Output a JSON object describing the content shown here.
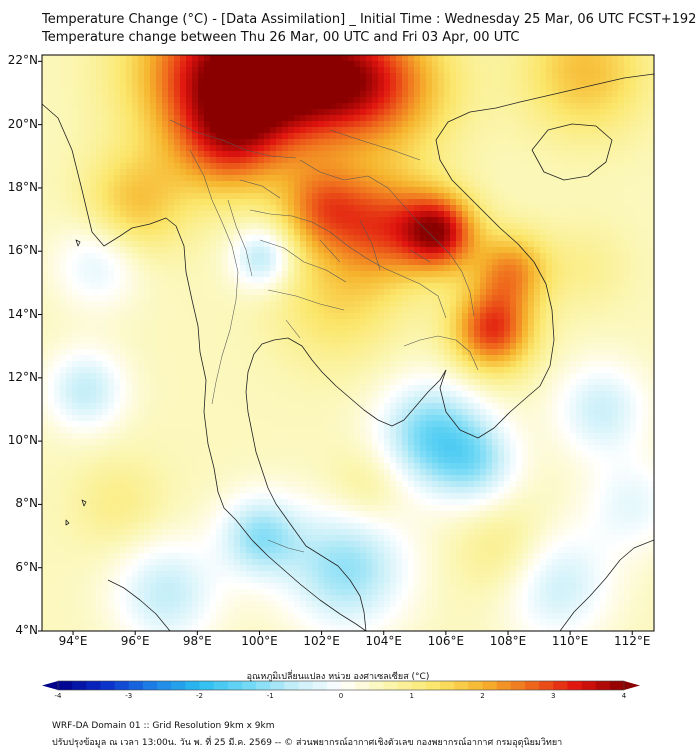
{
  "title": {
    "line1": "Temperature Change (°C) - [Data Assimilation] _ Initial Time : Wednesday 25 Mar, 06 UTC FCST+192",
    "line2": "Temperature change between Thu 26 Mar, 00 UTC and Fri 03 Apr, 00 UTC"
  },
  "map": {
    "lat_labels": [
      "22°N",
      "20°N",
      "18°N",
      "16°N",
      "14°N",
      "12°N",
      "10°N",
      "8°N",
      "6°N",
      "4°N"
    ],
    "lon_labels": [
      "94°E",
      "96°E",
      "98°E",
      "100°E",
      "102°E",
      "104°E",
      "106°E",
      "108°E",
      "110°E",
      "112°E"
    ],
    "lat_range": [
      4,
      22.2
    ],
    "lon_range": [
      93,
      112.7
    ],
    "field_blobs": [
      {
        "lon": 98.5,
        "lat": 21.7,
        "delta": 2.6,
        "spread": 2.6
      },
      {
        "lon": 100.5,
        "lat": 21.3,
        "delta": 2.0,
        "spread": 2.2
      },
      {
        "lon": 102.5,
        "lat": 21.5,
        "delta": 1.9,
        "spread": 2.0
      },
      {
        "lon": 104.2,
        "lat": 21.2,
        "delta": 1.6,
        "spread": 2.2
      },
      {
        "lon": 99.0,
        "lat": 19.4,
        "delta": 1.5,
        "spread": 1.7
      },
      {
        "lon": 105.8,
        "lat": 16.6,
        "delta": 2.8,
        "spread": 1.2
      },
      {
        "lon": 104.0,
        "lat": 16.8,
        "delta": 2.0,
        "spread": 1.7
      },
      {
        "lon": 102.0,
        "lat": 17.4,
        "delta": 1.7,
        "spread": 1.4
      },
      {
        "lon": 107.5,
        "lat": 13.5,
        "delta": 2.5,
        "spread": 1.3
      },
      {
        "lon": 108.1,
        "lat": 15.4,
        "delta": 1.7,
        "spread": 1.2
      },
      {
        "lon": 110.5,
        "lat": 21.7,
        "delta": 1.3,
        "spread": 2.0
      },
      {
        "lon": 96.0,
        "lat": 17.5,
        "delta": 1.2,
        "spread": 1.6
      },
      {
        "lon": 102.5,
        "lat": 14.5,
        "delta": 0.9,
        "spread": 2.0
      },
      {
        "lon": 105.5,
        "lat": 10.2,
        "delta": -1.8,
        "spread": 1.7
      },
      {
        "lon": 107.0,
        "lat": 9.3,
        "delta": -1.2,
        "spread": 1.4
      },
      {
        "lon": 100.1,
        "lat": 15.8,
        "delta": -1.4,
        "spread": 1.0
      },
      {
        "lon": 94.4,
        "lat": 11.6,
        "delta": -1.2,
        "spread": 1.3
      },
      {
        "lon": 94.8,
        "lat": 15.6,
        "delta": -0.9,
        "spread": 1.4
      },
      {
        "lon": 102.8,
        "lat": 6.0,
        "delta": -1.6,
        "spread": 2.0
      },
      {
        "lon": 100.0,
        "lat": 7.0,
        "delta": -1.5,
        "spread": 1.3
      },
      {
        "lon": 97.0,
        "lat": 5.2,
        "delta": -1.2,
        "spread": 1.7
      },
      {
        "lon": 111.0,
        "lat": 11.0,
        "delta": -1.1,
        "spread": 1.5
      },
      {
        "lon": 109.5,
        "lat": 5.5,
        "delta": -1.2,
        "spread": 1.8
      },
      {
        "lon": 112.0,
        "lat": 8.0,
        "delta": -0.8,
        "spread": 1.5
      },
      {
        "lon": 103.5,
        "lat": 8.5,
        "delta": 0.6,
        "spread": 1.3
      },
      {
        "lon": 95.5,
        "lat": 8.0,
        "delta": 0.5,
        "spread": 1.5
      },
      {
        "lon": 108.0,
        "lat": 6.5,
        "delta": 0.7,
        "spread": 1.6
      },
      {
        "lon": 110.5,
        "lat": 15.5,
        "delta": 0.4,
        "spread": 1.4
      }
    ]
  },
  "colorbar": {
    "label": "อุณหภูมิเปลี่ยนแปลง หน่วย องศาเซลเซียส (°C)",
    "ticks": [
      "-4",
      "-3",
      "-2",
      "-1",
      "0",
      "1",
      "2",
      "3",
      "4"
    ],
    "range": [
      -4,
      4
    ],
    "stops": [
      "#00008a",
      "#0b2fc8",
      "#1e7fe8",
      "#2bbdf0",
      "#6fd8f5",
      "#c4eef8",
      "#ffffff",
      "#fbf6b0",
      "#fbe66a",
      "#f6b52e",
      "#ef6a1c",
      "#e0140f",
      "#8a0000"
    ]
  },
  "footer": {
    "line1": "WRF-DA Domain 01 :: Grid Resolution 9km x 9km",
    "line2": "ปรับปรุงข้อมูล ณ เวลา 13:00น. วัน พ. ที่ 25 มี.ค. 2569 -- © ส่วนพยากรณ์อากาศเชิงตัวเลข กองพยากรณ์อากาศ กรมอุตุนิยมวิทยา"
  }
}
